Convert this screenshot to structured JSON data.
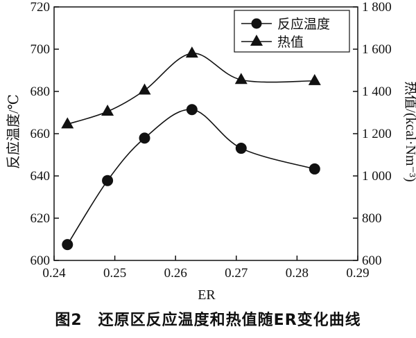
{
  "chart_data": {
    "type": "line",
    "xlabel": "ER",
    "ylabel_left": "反应温度/℃",
    "ylabel_right": "热值/(kcal·Nm⁻³)",
    "xlim": [
      0.24,
      0.29
    ],
    "ylim_left": [
      600,
      720
    ],
    "ylim_right": [
      600,
      1800
    ],
    "x_ticks": [
      "0.24",
      "0.25",
      "0.26",
      "0.27",
      "0.28",
      "0.29"
    ],
    "y_left_ticks": [
      "600",
      "620",
      "640",
      "660",
      "680",
      "700",
      "720"
    ],
    "y_right_ticks": [
      "600",
      "800",
      "1 000",
      "1 200",
      "1 400",
      "1 600",
      "1 800"
    ],
    "legend_position": "top-right",
    "grid": false,
    "series": [
      {
        "name": "反应温度",
        "axis": "left",
        "marker": "circle",
        "x": [
          0.2422,
          0.2488,
          0.2549,
          0.2627,
          0.2708,
          0.2829
        ],
        "values": [
          607.5,
          637.8,
          657.9,
          671.4,
          653.1,
          643.3
        ]
      },
      {
        "name": "热值",
        "axis": "right",
        "marker": "triangle",
        "x": [
          0.2422,
          0.2488,
          0.2549,
          0.2627,
          0.2708,
          0.2829
        ],
        "values": [
          1245,
          1305,
          1405,
          1580,
          1455,
          1450
        ]
      }
    ]
  },
  "caption": "图2　还原区反应温度和热值随ER变化曲线"
}
